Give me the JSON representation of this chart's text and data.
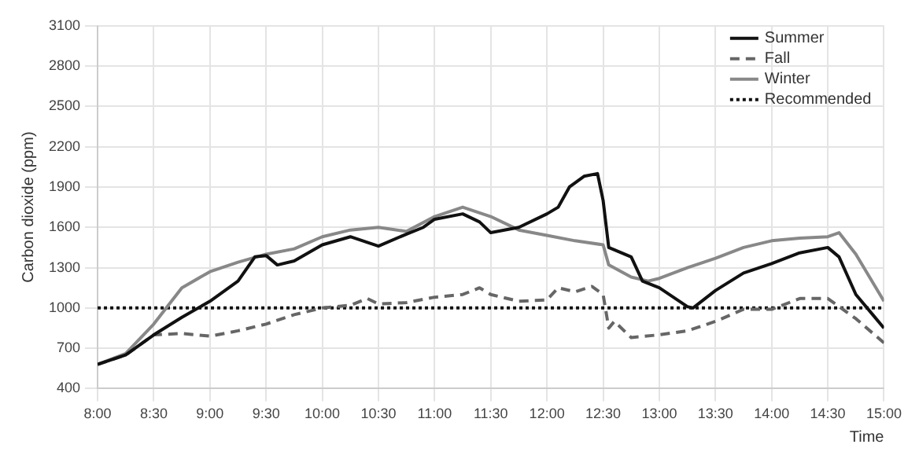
{
  "chart_data": {
    "type": "line",
    "xlabel": "Time",
    "ylabel": "Carbon dioxide (ppm)",
    "xlim": [
      8,
      15
    ],
    "ylim": [
      400,
      3100
    ],
    "xticks": [
      {
        "value": 8,
        "label": "8:00"
      },
      {
        "value": 8.5,
        "label": "8:30"
      },
      {
        "value": 9,
        "label": "9:00"
      },
      {
        "value": 9.5,
        "label": "9:30"
      },
      {
        "value": 10,
        "label": "10:00"
      },
      {
        "value": 10.5,
        "label": "10:30"
      },
      {
        "value": 11,
        "label": "11:00"
      },
      {
        "value": 11.5,
        "label": "11:30"
      },
      {
        "value": 12,
        "label": "12:00"
      },
      {
        "value": 12.5,
        "label": "12:30"
      },
      {
        "value": 13,
        "label": "13:00"
      },
      {
        "value": 13.5,
        "label": "13:30"
      },
      {
        "value": 14,
        "label": "14:00"
      },
      {
        "value": 14.5,
        "label": "14:30"
      },
      {
        "value": 15,
        "label": "15:00"
      }
    ],
    "yticks": [
      400,
      700,
      1000,
      1300,
      1600,
      1900,
      2200,
      2500,
      2800,
      3100
    ],
    "grid": true,
    "legend": "top right",
    "marker": "none",
    "series": [
      {
        "name": "Summer",
        "color": "#111111",
        "line_style": "solid",
        "x": [
          8,
          8.25,
          8.5,
          8.75,
          9,
          9.25,
          9.4,
          9.5,
          9.6,
          9.75,
          10,
          10.25,
          10.5,
          10.75,
          10.9,
          11,
          11.25,
          11.4,
          11.5,
          11.75,
          12,
          12.1,
          12.2,
          12.33,
          12.45,
          12.5,
          12.55,
          12.75,
          12.85,
          13,
          13.25,
          13.3,
          13.5,
          13.75,
          14,
          14.25,
          14.5,
          14.6,
          14.75,
          14.9,
          15
        ],
        "values": [
          580,
          650,
          800,
          930,
          1050,
          1200,
          1380,
          1390,
          1320,
          1350,
          1470,
          1530,
          1460,
          1550,
          1600,
          1660,
          1700,
          1640,
          1560,
          1600,
          1700,
          1750,
          1900,
          1980,
          2000,
          1800,
          1450,
          1380,
          1200,
          1150,
          1010,
          1000,
          1130,
          1260,
          1330,
          1410,
          1450,
          1380,
          1100,
          950,
          850
        ]
      },
      {
        "name": "Fall",
        "color": "#666666",
        "line_style": "dashed",
        "x": [
          8,
          8.25,
          8.5,
          8.75,
          9,
          9.25,
          9.5,
          9.75,
          10,
          10.25,
          10.4,
          10.5,
          10.75,
          11,
          11.25,
          11.4,
          11.5,
          11.75,
          12,
          12.1,
          12.25,
          12.4,
          12.5,
          12.55,
          12.6,
          12.75,
          13,
          13.25,
          13.5,
          13.75,
          14,
          14.25,
          14.5,
          14.75,
          15
        ],
        "values": [
          580,
          650,
          800,
          810,
          790,
          830,
          880,
          950,
          1000,
          1020,
          1070,
          1030,
          1040,
          1080,
          1100,
          1150,
          1100,
          1050,
          1060,
          1150,
          1120,
          1160,
          1100,
          850,
          900,
          780,
          800,
          830,
          900,
          990,
          990,
          1070,
          1070,
          920,
          740
        ]
      },
      {
        "name": "Winter",
        "color": "#888888",
        "line_style": "solid",
        "x": [
          8,
          8.25,
          8.5,
          8.75,
          9,
          9.25,
          9.5,
          9.75,
          10,
          10.25,
          10.5,
          10.75,
          11,
          11.25,
          11.5,
          11.75,
          12,
          12.25,
          12.5,
          12.55,
          12.75,
          12.9,
          13,
          13.25,
          13.5,
          13.75,
          14,
          14.25,
          14.5,
          14.6,
          14.75,
          15
        ],
        "values": [
          580,
          660,
          880,
          1150,
          1270,
          1340,
          1400,
          1440,
          1530,
          1580,
          1600,
          1570,
          1680,
          1750,
          1680,
          1580,
          1540,
          1500,
          1470,
          1320,
          1230,
          1200,
          1220,
          1300,
          1370,
          1450,
          1500,
          1520,
          1530,
          1560,
          1400,
          1050
        ]
      },
      {
        "name": "Recommended",
        "color": "#111111",
        "line_style": "dotted",
        "x": [
          8,
          15
        ],
        "values": [
          1000,
          1000
        ]
      }
    ]
  }
}
